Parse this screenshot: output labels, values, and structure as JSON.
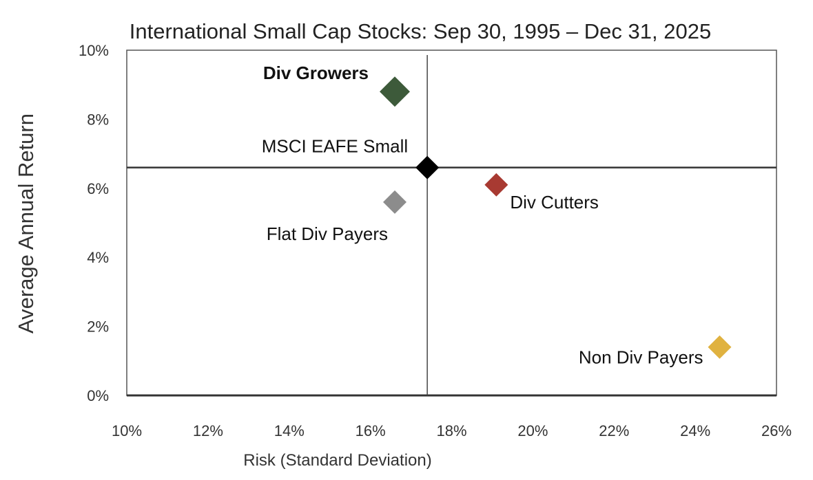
{
  "chart_data": {
    "type": "scatter",
    "title": "International Small Cap Stocks: Sep 30, 1995 – Dec 31, 2025",
    "xlabel": "Risk (Standard Deviation)",
    "ylabel": "Average Annual Return",
    "xlim": [
      10,
      26
    ],
    "ylim": [
      0,
      10
    ],
    "x_ticks": [
      "10%",
      "12%",
      "14%",
      "16%",
      "18%",
      "20%",
      "22%",
      "24%",
      "26%"
    ],
    "y_ticks": [
      "0%",
      "2%",
      "4%",
      "6%",
      "8%",
      "10%"
    ],
    "grid": false,
    "reference_lines": {
      "x": 17.4,
      "y": 6.6
    },
    "points": [
      {
        "label": "Div Growers",
        "x": 16.6,
        "y": 8.8,
        "color": "#3d5a3a",
        "bold": true
      },
      {
        "label": "MSCI EAFE Small",
        "x": 17.4,
        "y": 6.6,
        "color": "#000000",
        "bold": false
      },
      {
        "label": "Div Cutters",
        "x": 19.1,
        "y": 6.1,
        "color": "#a83a32",
        "bold": false
      },
      {
        "label": "Flat Div Payers",
        "x": 16.6,
        "y": 5.6,
        "color": "#8c8c8c",
        "bold": false
      },
      {
        "label": "Non Div Payers",
        "x": 24.6,
        "y": 1.4,
        "color": "#e0b240",
        "bold": false
      }
    ]
  }
}
